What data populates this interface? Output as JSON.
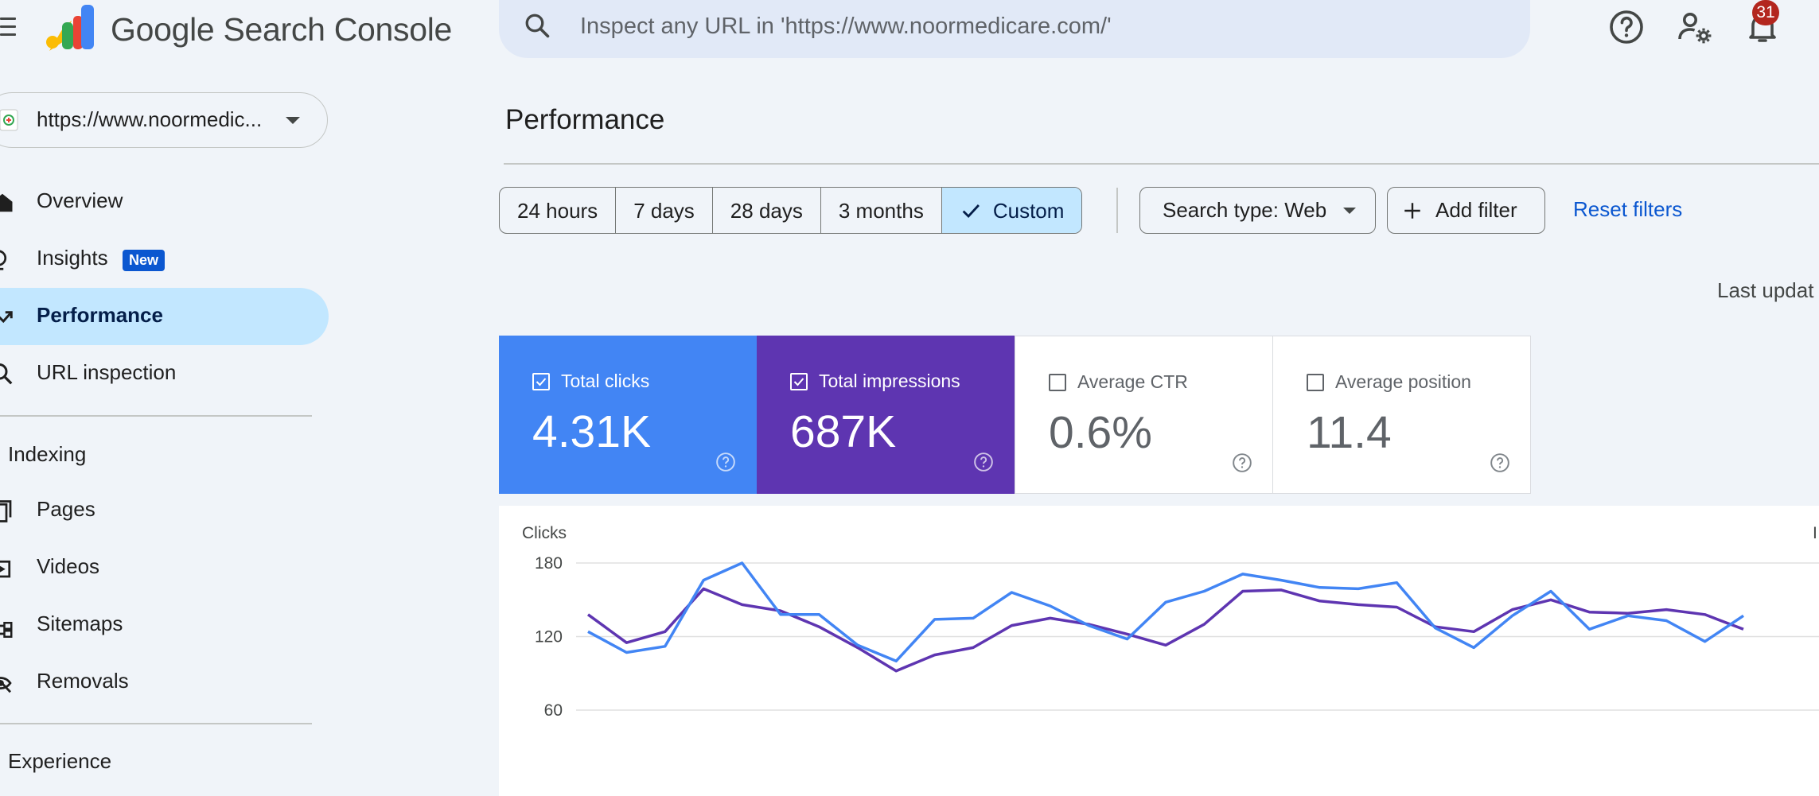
{
  "app": {
    "title": "Google Search Console",
    "logo_colors": [
      "#fbbc04",
      "#34a853",
      "#ea4335",
      "#4285f4"
    ]
  },
  "search": {
    "placeholder": "Inspect any URL in 'https://www.noormedicare.com/'",
    "value": ""
  },
  "header_icons": [
    "help-icon",
    "manage-users-icon",
    "notifications-icon"
  ],
  "notifications": {
    "count": "31"
  },
  "property": {
    "name": "https://www.noormedic..."
  },
  "sidebar": {
    "items": [
      {
        "label": "Overview",
        "icon": "home-icon"
      },
      {
        "label": "Insights",
        "icon": "lightbulb-icon",
        "badge": "New"
      },
      {
        "label": "Performance",
        "icon": "trending-up-icon",
        "active": true
      },
      {
        "label": "URL inspection",
        "icon": "search-icon"
      }
    ],
    "sections": [
      {
        "label": "Indexing",
        "items": [
          {
            "label": "Pages",
            "icon": "pages-icon"
          },
          {
            "label": "Videos",
            "icon": "video-icon"
          },
          {
            "label": "Sitemaps",
            "icon": "sitemap-icon"
          },
          {
            "label": "Removals",
            "icon": "removal-icon"
          }
        ]
      },
      {
        "label": "Experience",
        "items": []
      }
    ]
  },
  "main": {
    "title": "Performance",
    "date_ranges": [
      "24 hours",
      "7 days",
      "28 days",
      "3 months",
      "Custom"
    ],
    "selected_range": "Custom",
    "search_type_label": "Search type: Web",
    "add_filter_label": "Add filter",
    "reset_filters_label": "Reset filters",
    "last_updated": "Last updat"
  },
  "metrics": [
    {
      "label": "Total clicks",
      "value": "4.31K",
      "checked": true,
      "color": "#4285f4"
    },
    {
      "label": "Total impressions",
      "value": "687K",
      "checked": true,
      "color": "#5e35b1"
    },
    {
      "label": "Average CTR",
      "value": "0.6%",
      "checked": false
    },
    {
      "label": "Average position",
      "value": "11.4",
      "checked": false
    }
  ],
  "chart_data": {
    "type": "line",
    "ylabel": "Clicks",
    "right_axis_label": "I",
    "yticks": [
      180,
      120,
      60
    ],
    "ylim": [
      45,
      180
    ],
    "series": [
      {
        "name": "Clicks",
        "color": "#4285f4",
        "values": [
          124,
          107,
          112,
          166,
          180,
          138,
          138,
          113,
          100,
          134,
          135,
          156,
          145,
          129,
          118,
          148,
          157,
          171,
          166,
          160,
          159,
          164,
          127,
          111,
          137,
          157,
          126,
          137,
          133,
          116,
          137
        ]
      },
      {
        "name": "Impressions",
        "color": "#5e35b1",
        "values": [
          138,
          115,
          124,
          159,
          146,
          141,
          128,
          111,
          92,
          105,
          111,
          129,
          135,
          130,
          122,
          113,
          130,
          157,
          158,
          149,
          146,
          144,
          128,
          124,
          142,
          150,
          140,
          139,
          142,
          138,
          126
        ]
      }
    ]
  }
}
